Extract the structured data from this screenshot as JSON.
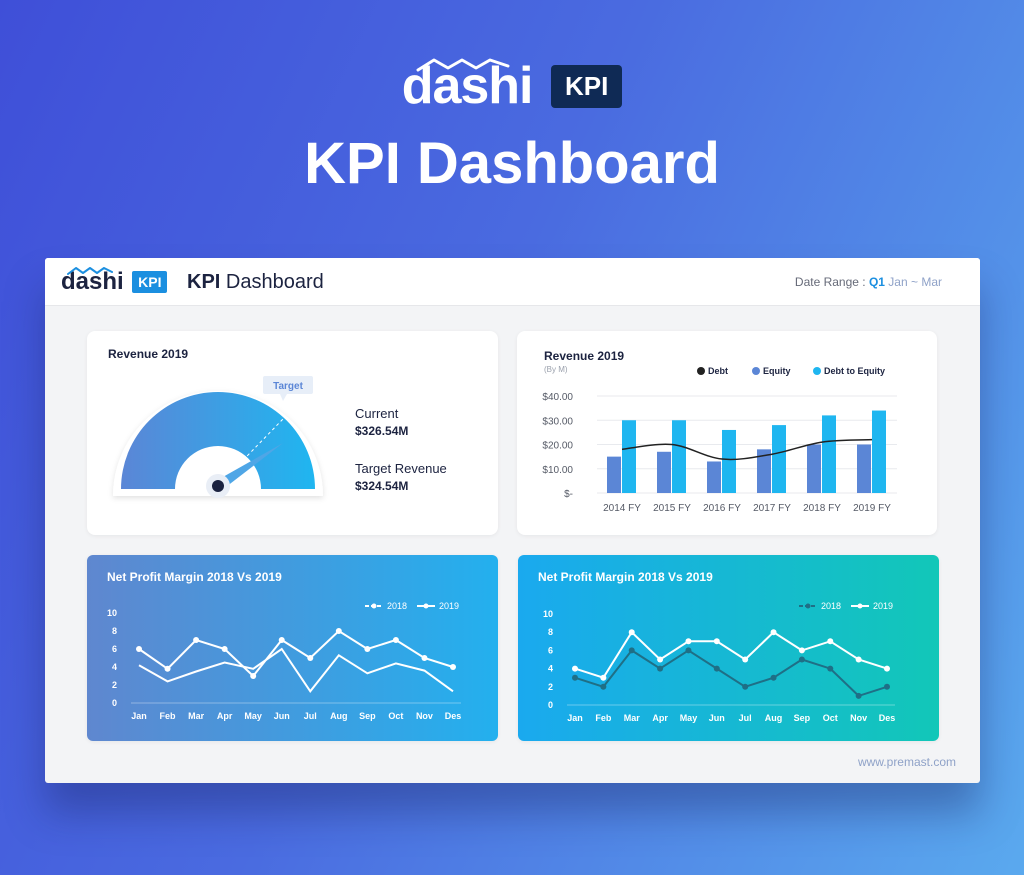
{
  "hero": {
    "logo_word": "dashi",
    "logo_badge": "KPI",
    "title": "KPI Dashboard"
  },
  "window": {
    "logo_word": "dashi",
    "logo_badge": "KPI",
    "title_bold": "KPI",
    "title_rest": " Dashboard",
    "date_range_label": "Date Range : ",
    "date_range_quarter": "Q1",
    "date_range_months": " Jan ~ Mar",
    "website": "www.premast.com"
  },
  "gauge": {
    "title": "Revenue 2019",
    "target_tag": "Target",
    "current_label": "Current",
    "current_value": "$326.54M",
    "target_label": "Target Revenue",
    "target_value": "$324.54M",
    "colors": {
      "start": "#5b86d6",
      "end": "#1fb6f0",
      "needle": "#4fa6e6"
    }
  },
  "chart_data": [
    {
      "type": "bar",
      "title": "Revenue 2019",
      "subtitle": "(By M)",
      "categories": [
        "2014 FY",
        "2015 FY",
        "2016 FY",
        "2017 FY",
        "2018 FY",
        "2019 FY"
      ],
      "y_ticks": [
        "$-",
        "$10.00",
        "$20.00",
        "$30.00",
        "$40.00"
      ],
      "ylim": [
        0,
        40
      ],
      "grid": true,
      "legend_position": "top-right",
      "series": [
        {
          "name": "Equity",
          "kind": "bar",
          "color": "#5b86d6",
          "values": [
            15,
            17,
            13,
            18,
            20,
            20
          ]
        },
        {
          "name": "Debt to Equity",
          "kind": "bar",
          "color": "#1fb6f0",
          "values": [
            30,
            30,
            26,
            28,
            32,
            34
          ]
        },
        {
          "name": "Debt",
          "kind": "line",
          "color": "#222222",
          "values": [
            18,
            20,
            14,
            16,
            21,
            22
          ]
        }
      ]
    },
    {
      "type": "line",
      "title": "Net Profit Margin 2018 Vs 2019",
      "categories": [
        "Jan",
        "Feb",
        "Mar",
        "Apr",
        "May",
        "Jun",
        "Jul",
        "Aug",
        "Sep",
        "Oct",
        "Nov",
        "Des"
      ],
      "y_ticks": [
        "0",
        "2",
        "4",
        "6",
        "8",
        "10"
      ],
      "ylim": [
        0,
        10
      ],
      "legend_position": "top-right",
      "series": [
        {
          "name": "2018",
          "values": [
            4.2,
            2.4,
            3.5,
            4.5,
            3.8,
            6.0,
            1.3,
            5.3,
            3.3,
            4.4,
            3.6,
            1.3
          ]
        },
        {
          "name": "2019",
          "values": [
            6.0,
            3.8,
            7.0,
            6.0,
            3.0,
            7.0,
            5.0,
            8.0,
            6.0,
            7.0,
            5.0,
            4.0
          ]
        }
      ]
    },
    {
      "type": "line",
      "title": "Net Profit Margin 2018 Vs 2019",
      "categories": [
        "Jan",
        "Feb",
        "Mar",
        "Apr",
        "May",
        "Jun",
        "Jul",
        "Aug",
        "Sep",
        "Oct",
        "Nov",
        "Des"
      ],
      "y_ticks": [
        "0",
        "2",
        "4",
        "6",
        "8",
        "10"
      ],
      "ylim": [
        0,
        10
      ],
      "legend_position": "top-right",
      "series": [
        {
          "name": "2018",
          "color": "#1f6f86",
          "values": [
            3.0,
            2.0,
            6.0,
            4.0,
            6.0,
            4.0,
            2.0,
            3.0,
            5.0,
            4.0,
            1.0,
            2.0
          ]
        },
        {
          "name": "2019",
          "color": "#ffffff",
          "values": [
            4.0,
            3.0,
            8.0,
            5.0,
            7.0,
            7.0,
            5.0,
            8.0,
            6.0,
            7.0,
            5.0,
            4.0
          ]
        }
      ]
    }
  ]
}
